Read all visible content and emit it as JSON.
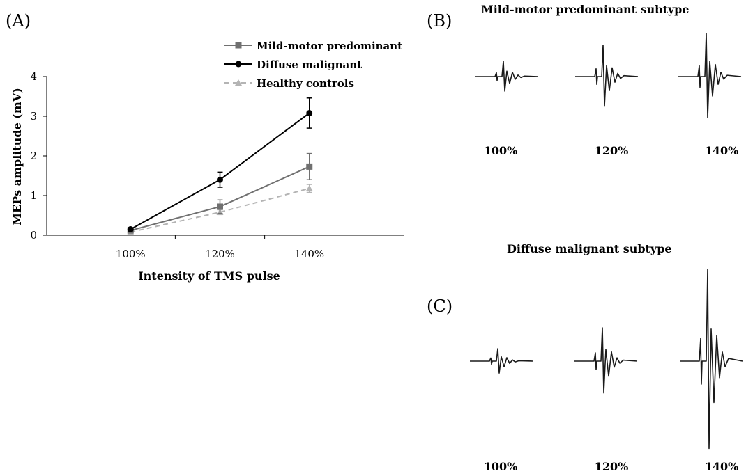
{
  "panels": {
    "a_label": "(A)",
    "b_label": "(B)",
    "c_label": "(C)"
  },
  "chart_data": [
    {
      "type": "line",
      "categories": [
        "100%",
        "120%",
        "140%"
      ],
      "xlabel": "Intensity of TMS pulse",
      "ylabel": "MEPs amplitude (mV)",
      "ylim": [
        0,
        4
      ],
      "yticks": [
        "0",
        "1",
        "2",
        "3",
        "4"
      ],
      "grid": false,
      "legend_position": "top-right",
      "series": [
        {
          "name": "Mild-motor predominant",
          "values": [
            0.12,
            0.72,
            1.73
          ],
          "error": [
            0.03,
            0.17,
            0.33
          ],
          "color": "#707070",
          "marker": "square",
          "dash": false
        },
        {
          "name": "Diffuse malignant",
          "values": [
            0.15,
            1.4,
            3.08
          ],
          "error": [
            0.04,
            0.19,
            0.38
          ],
          "color": "#000000",
          "marker": "circle",
          "dash": false
        },
        {
          "name": "Healthy controls",
          "values": [
            0.08,
            0.58,
            1.18
          ],
          "error": [
            0.02,
            0.06,
            0.1
          ],
          "color": "#b4b4b4",
          "marker": "triangle",
          "dash": true
        }
      ]
    }
  ],
  "traces": {
    "b_title": "Mild-motor predominant subtype",
    "c_title": "Diffuse malignant subtype",
    "b_labels": [
      "100%",
      "120%",
      "140%"
    ],
    "c_labels": [
      "100%",
      "120%",
      "140%"
    ]
  }
}
